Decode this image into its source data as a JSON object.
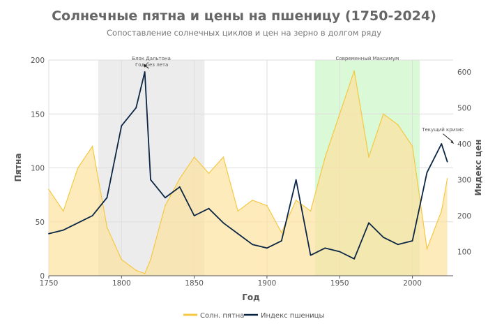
{
  "chart_data": {
    "type": "area+line",
    "title": "Солнечные пятна и цены на пшеницу (1750-2024)",
    "subtitle": "Сопоставление солнечных циклов и цен на зерно в долгом ряду",
    "xlabel": "Год",
    "ylabel_left": "Пятна",
    "ylabel_right": "Индекс цен",
    "xlim": [
      1750,
      2028
    ],
    "ylim_left": [
      0,
      200
    ],
    "ylim_right": [
      33,
      633
    ],
    "x_ticks": [
      1750,
      1800,
      1850,
      1900,
      1950,
      2000
    ],
    "y_left_ticks": [
      0,
      50,
      100,
      150,
      200
    ],
    "y_right_ticks": [
      100,
      200,
      300,
      400,
      500,
      600
    ],
    "grid": true,
    "legend_position": "bottom",
    "shaded_regions": [
      {
        "label": "Блок Дальтона",
        "start": 1784,
        "end": 1857,
        "color": "#d9d9d9"
      },
      {
        "label": "Современный Максимум",
        "start": 1933,
        "end": 2005,
        "color": "#b6f3b0"
      }
    ],
    "annotations": [
      {
        "text": "Год без лета",
        "x": 1816,
        "y": 610
      },
      {
        "text": "Текущий кризис",
        "x": 2020,
        "y": 400
      }
    ],
    "series": [
      {
        "name": "Солн. пятна",
        "axis": "left",
        "color": "#f5c842",
        "fill": "#fde3a0",
        "x": [
          1750,
          1760,
          1770,
          1780,
          1790,
          1800,
          1810,
          1816,
          1820,
          1830,
          1840,
          1850,
          1860,
          1870,
          1880,
          1890,
          1900,
          1910,
          1920,
          1930,
          1940,
          1950,
          1960,
          1970,
          1980,
          1990,
          2000,
          2010,
          2020,
          2024
        ],
        "values": [
          80,
          60,
          100,
          120,
          45,
          15,
          5,
          2,
          15,
          65,
          90,
          110,
          95,
          110,
          60,
          70,
          65,
          40,
          70,
          60,
          110,
          150,
          190,
          110,
          150,
          140,
          120,
          25,
          60,
          90
        ]
      },
      {
        "name": "Индекс пшеницы",
        "axis": "right",
        "color": "#0b2545",
        "x": [
          1750,
          1760,
          1770,
          1780,
          1790,
          1800,
          1810,
          1816,
          1820,
          1830,
          1840,
          1850,
          1860,
          1870,
          1880,
          1890,
          1900,
          1910,
          1920,
          1930,
          1940,
          1950,
          1960,
          1970,
          1980,
          1990,
          2000,
          2010,
          2020,
          2024
        ],
        "values": [
          150,
          160,
          180,
          200,
          250,
          450,
          500,
          600,
          300,
          250,
          280,
          200,
          220,
          180,
          150,
          120,
          110,
          130,
          300,
          90,
          110,
          100,
          80,
          180,
          140,
          120,
          130,
          320,
          400,
          350
        ]
      }
    ]
  }
}
